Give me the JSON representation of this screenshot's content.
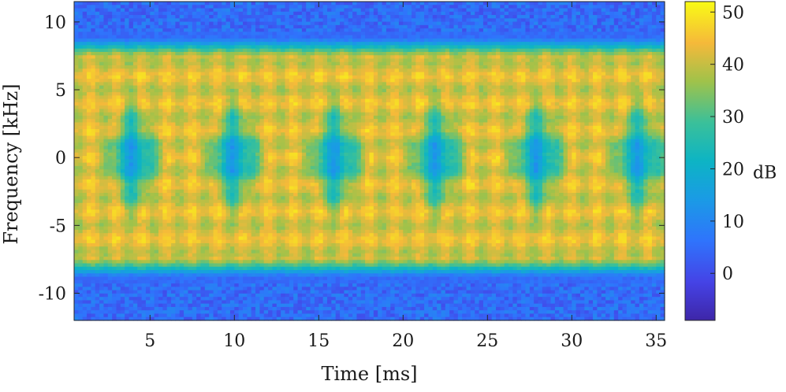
{
  "chart_data": {
    "type": "heatmap",
    "title": "",
    "xlabel": "Time [ms]",
    "ylabel": "Frequency [kHz]",
    "xlim": [
      0.5,
      35.5
    ],
    "ylim": [
      -12,
      11.5
    ],
    "xticks": [
      5,
      10,
      15,
      20,
      25,
      30,
      35
    ],
    "yticks": [
      -10,
      -5,
      0,
      5,
      10
    ],
    "ytick_labels": [
      "-10",
      "-5",
      "0",
      "5",
      "10"
    ],
    "colorbar": {
      "label": "dB",
      "range": [
        -9,
        52
      ],
      "ticks": [
        0,
        10,
        20,
        30,
        40,
        50
      ],
      "colormap": "parula"
    },
    "grid": false,
    "bands": {
      "occupied_khz": [
        -8,
        8
      ],
      "occupied_level_db": 42,
      "noise_level_db": 5,
      "null_centers_ms": [
        4,
        10,
        16,
        22,
        28,
        34
      ],
      "null_level_db": 8
    }
  }
}
